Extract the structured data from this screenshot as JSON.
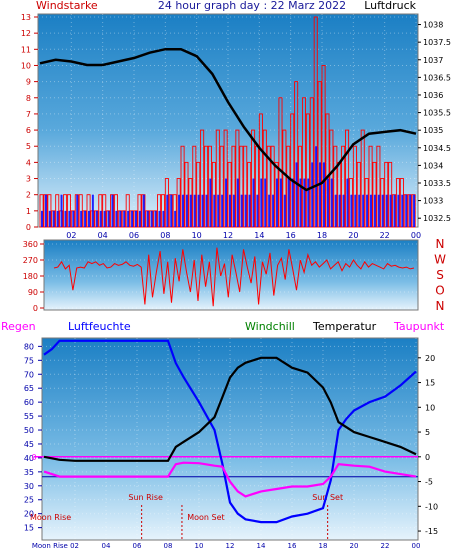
{
  "title": "24 hour graph day : 22 Marz 2022",
  "colors": {
    "wind": "#ff0000",
    "gust": "#ff0000",
    "avgwind": "#0000ff",
    "pressure": "#000000",
    "humidity": "#0000ff",
    "windchill": "#008000",
    "temperature": "#000000",
    "dewpoint": "#ff00ff",
    "regen": "#ff00ff",
    "axis_left": "#cc0000",
    "axis_blue": "#0000aa",
    "events": "#cc0000"
  },
  "chart_data": [
    {
      "id": "wind_pressure",
      "type": "bar",
      "left_label": "Windstarke",
      "right_label": "Luftdruck",
      "ylim_left": [
        0,
        13
      ],
      "yticks_left": [
        "0",
        "1",
        "2",
        "3",
        "4",
        "5",
        "6",
        "7",
        "8",
        "9",
        "10",
        "11",
        "12",
        "13"
      ],
      "ylim_right": [
        1032.25,
        1038.3
      ],
      "yticks_right": [
        "1032.5",
        "1033",
        "1033.5",
        "1034",
        "1034.5",
        "1035",
        "1035.5",
        "1036",
        "1036.5",
        "1037",
        "1037.5",
        "1038"
      ],
      "xlim": [
        0,
        24
      ],
      "xticks": [
        "02",
        "04",
        "06",
        "08",
        "10",
        "12",
        "14",
        "16",
        "18",
        "20",
        "22",
        "00"
      ],
      "series": [
        {
          "key": "gust",
          "values": [
            2,
            2,
            2,
            1,
            2,
            1,
            2,
            2,
            1,
            2,
            2,
            1,
            2,
            1,
            1,
            2,
            2,
            1,
            2,
            2,
            1,
            1,
            2,
            1,
            1,
            2,
            2,
            1,
            1,
            1,
            2,
            2,
            3,
            2,
            2,
            3,
            5,
            4,
            3,
            5,
            4,
            6,
            5,
            5,
            4,
            6,
            5,
            6,
            4,
            5,
            6,
            5,
            5,
            4,
            6,
            5,
            7,
            6,
            5,
            5,
            4,
            8,
            6,
            5,
            7,
            9,
            5,
            8,
            7,
            8,
            13,
            9,
            10,
            7,
            6,
            5,
            4,
            5,
            6,
            3,
            5,
            4,
            6,
            3,
            5,
            4,
            5,
            3,
            4,
            4,
            2,
            3,
            3,
            2,
            2,
            2
          ]
        },
        {
          "key": "avgwind",
          "values": [
            1,
            2,
            1,
            1,
            1,
            2,
            1,
            1,
            1,
            2,
            1,
            1,
            1,
            2,
            1,
            1,
            1,
            1,
            2,
            1,
            1,
            1,
            1,
            1,
            1,
            1,
            2,
            1,
            1,
            1,
            1,
            1,
            2,
            2,
            1,
            2,
            2,
            2,
            2,
            2,
            2,
            2,
            2,
            3,
            2,
            2,
            2,
            3,
            2,
            2,
            3,
            2,
            2,
            2,
            3,
            2,
            3,
            3,
            2,
            2,
            3,
            3,
            2,
            3,
            3,
            4,
            3,
            3,
            3,
            4,
            5,
            4,
            4,
            3,
            3,
            2,
            2,
            2,
            3,
            2,
            2,
            2,
            2,
            2,
            2,
            2,
            2,
            2,
            2,
            2,
            2,
            2,
            2,
            2,
            2,
            2
          ]
        },
        {
          "key": "pressure",
          "x": [
            0,
            1,
            2,
            3,
            4,
            5,
            6,
            7,
            8,
            9,
            10,
            11,
            12,
            13,
            14,
            15,
            16,
            17,
            18,
            19,
            20,
            21,
            22,
            23,
            24
          ],
          "values": [
            1036.9,
            1037.0,
            1036.95,
            1036.85,
            1036.85,
            1036.95,
            1037.05,
            1037.2,
            1037.3,
            1037.3,
            1037.1,
            1036.6,
            1035.8,
            1035.1,
            1034.5,
            1034.0,
            1033.6,
            1033.3,
            1033.5,
            1034.0,
            1034.6,
            1034.9,
            1034.95,
            1035.0,
            1034.9
          ]
        }
      ]
    },
    {
      "id": "wind_direction",
      "type": "line",
      "ylim": [
        0,
        360
      ],
      "yticks": [
        "0",
        "90",
        "180",
        "270",
        "360"
      ],
      "right_labels": [
        "N",
        "W",
        "S",
        "O",
        "N"
      ],
      "series": [
        {
          "key": "direction",
          "values": [
            225,
            230,
            260,
            220,
            240,
            100,
            225,
            230,
            225,
            260,
            250,
            260,
            240,
            250,
            225,
            230,
            250,
            240,
            245,
            260,
            240,
            235,
            245,
            230,
            20,
            300,
            60,
            200,
            320,
            80,
            260,
            30,
            280,
            150,
            330,
            200,
            90,
            270,
            40,
            300,
            120,
            260,
            10,
            340,
            180,
            250,
            60,
            300,
            200,
            90,
            330,
            230,
            140,
            290,
            20,
            260,
            190,
            310,
            70,
            240,
            280,
            160,
            330,
            220,
            100,
            270,
            200,
            300,
            240,
            260,
            230,
            250,
            270,
            220,
            240,
            260,
            210,
            250,
            230,
            270,
            240,
            220,
            260,
            230,
            250,
            240,
            230,
            220,
            250,
            235,
            240,
            230,
            225,
            230,
            220,
            225
          ]
        }
      ]
    },
    {
      "id": "temp_humidity",
      "type": "line",
      "legend": [
        "Regen",
        "Luftfeuchte",
        "Windchill",
        "Temperatur",
        "Taupunkt"
      ],
      "ylim_left": [
        12,
        83
      ],
      "yticks_left": [
        "15",
        "20",
        "25",
        "30",
        "35",
        "40",
        "45",
        "50",
        "55",
        "60",
        "65",
        "70",
        "75",
        "80"
      ],
      "ylim_right": [
        -16,
        24
      ],
      "yticks_right": [
        "-15",
        "-10",
        "-5",
        "0",
        "5",
        "10",
        "15",
        "20"
      ],
      "zero_label": "0",
      "xticks": [
        "Moon Rise 02",
        "04",
        "06",
        "08",
        "10",
        "12",
        "14",
        "16",
        "18",
        "20",
        "22",
        "00"
      ],
      "series": [
        {
          "key": "humidity",
          "x": [
            0,
            0.5,
            1,
            2,
            3,
            4,
            5,
            6,
            7,
            8,
            8.5,
            9,
            10,
            11,
            11.5,
            12,
            12.5,
            13,
            14,
            15,
            16,
            17,
            18,
            18.5,
            19,
            19.5,
            20,
            21,
            22,
            23,
            24
          ],
          "values": [
            77,
            79,
            82,
            82,
            82,
            82,
            82,
            82,
            82,
            82,
            74,
            69,
            60,
            50,
            38,
            24,
            20,
            18,
            17,
            17,
            19,
            20,
            22,
            32,
            50,
            54,
            57,
            60,
            62,
            66,
            71
          ]
        },
        {
          "key": "temperature",
          "x": [
            0,
            0.5,
            1,
            2,
            3,
            4,
            5,
            6,
            7,
            8,
            8.5,
            9,
            10,
            11,
            11.5,
            12,
            12.5,
            13,
            14,
            15,
            16,
            17,
            18,
            18.5,
            19,
            20,
            21,
            22,
            23,
            24
          ],
          "values": [
            0,
            -0.3,
            -0.6,
            -0.8,
            -0.8,
            -0.8,
            -0.8,
            -0.8,
            -0.8,
            -0.8,
            2,
            3,
            5,
            8,
            12,
            16,
            18,
            19,
            20,
            20,
            18,
            17,
            14,
            11,
            7,
            5,
            4,
            3,
            2,
            0.5
          ]
        },
        {
          "key": "dewpoint",
          "x": [
            0,
            0.5,
            1,
            2,
            3,
            4,
            5,
            6,
            7,
            8,
            8.5,
            9,
            10,
            11,
            11.5,
            12,
            12.5,
            13,
            14,
            15,
            16,
            17,
            18,
            18.5,
            19,
            20,
            21,
            22,
            23,
            24
          ],
          "values": [
            -3,
            -3.5,
            -4,
            -4,
            -4,
            -4,
            -4,
            -4,
            -4,
            -4,
            -1.5,
            -1.2,
            -1.3,
            -1.8,
            -2,
            -5,
            -7,
            -8,
            -7,
            -6.5,
            -6,
            -6,
            -5.5,
            -4,
            -1.5,
            -1.8,
            -2,
            -3,
            -3.5,
            -4
          ]
        }
      ]
    }
  ],
  "events": {
    "sun_rise": "Sun Rise",
    "sun_set": "Sun Set",
    "moon_rise": "Moon Rise",
    "moon_set": "Moon Set",
    "sun_rise_hour": 6.3,
    "sun_set_hour": 18.3,
    "moon_set_hour": 8.9
  }
}
